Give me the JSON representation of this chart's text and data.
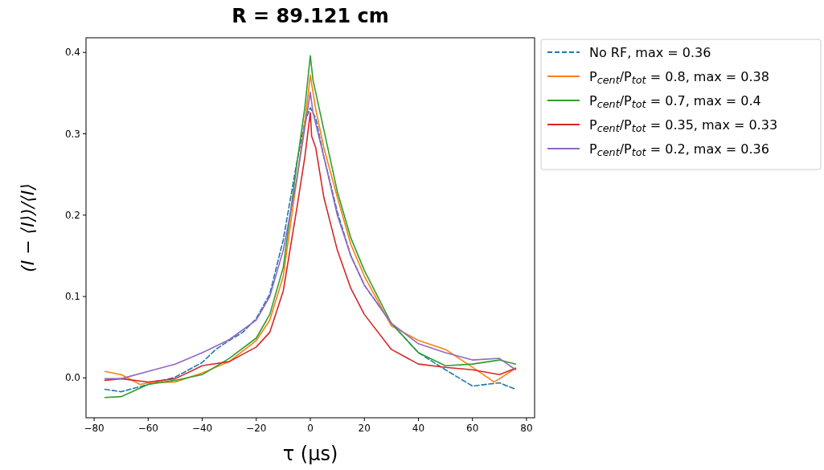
{
  "chart_data": {
    "type": "line",
    "title": "R = 89.121 cm",
    "xlabel": "τ (μs)",
    "ylabel": "(I − ⟨I⟩)/⟨I⟩",
    "xlim": [
      -83,
      83
    ],
    "ylim": [
      -0.049,
      0.418
    ],
    "xticks": [
      {
        "value": -80,
        "label": "−80"
      },
      {
        "value": -60,
        "label": "−60"
      },
      {
        "value": -40,
        "label": "−40"
      },
      {
        "value": -20,
        "label": "−20"
      },
      0,
      20,
      40,
      60,
      80
    ],
    "yticks": [
      {
        "value": 0,
        "label": "0.0"
      },
      {
        "value": 0.1,
        "label": "0.1"
      },
      {
        "value": 0.2,
        "label": "0.2"
      },
      {
        "value": 0.3,
        "label": "0.3"
      },
      {
        "value": 0.4,
        "label": "0.4"
      }
    ],
    "grid": false,
    "legend": "right",
    "series": [
      {
        "name": "No RF, max = 0.36",
        "color": "#1f77b4",
        "line_style": "dashed",
        "x": [
          -76,
          -70,
          -60,
          -50,
          -40,
          -35,
          -30,
          -25,
          -20,
          -15,
          -10,
          -5,
          -2,
          0,
          2,
          5,
          10,
          15,
          20,
          30,
          40,
          50,
          60,
          70,
          76
        ],
        "values": [
          -0.014,
          -0.017,
          -0.008,
          0.001,
          0.019,
          0.035,
          0.046,
          0.056,
          0.073,
          0.103,
          0.17,
          0.265,
          0.315,
          0.332,
          0.319,
          0.272,
          0.204,
          0.15,
          0.114,
          0.067,
          0.031,
          0.01,
          -0.01,
          -0.006,
          -0.014
        ]
      },
      {
        "name": "P$_{cent}$/P$_{tot}$ = 0.8, max = 0.38",
        "color": "#ff7f0e",
        "line_style": "solid",
        "x": [
          -76,
          -70,
          -63,
          -60,
          -50,
          -40,
          -30,
          -20,
          -15,
          -10,
          -5,
          -2,
          0,
          2,
          5,
          10,
          15,
          20,
          30,
          40,
          50,
          60,
          68,
          70,
          76
        ],
        "values": [
          0.008,
          0.004,
          -0.008,
          -0.006,
          -0.005,
          0.006,
          0.02,
          0.046,
          0.071,
          0.125,
          0.244,
          0.315,
          0.372,
          0.33,
          0.283,
          0.222,
          0.164,
          0.125,
          0.064,
          0.046,
          0.035,
          0.013,
          -0.005,
          -0.001,
          0.012
        ]
      },
      {
        "name": "P$_{cent}$/P$_{tot}$ = 0.7, max = 0.4",
        "color": "#2ca02c",
        "line_style": "solid",
        "x": [
          -76,
          -70,
          -60,
          -50,
          -40,
          -30,
          -20,
          -15,
          -10,
          -5,
          -2,
          0,
          1,
          5,
          10,
          15,
          20,
          30,
          40,
          50,
          60,
          70,
          76
        ],
        "values": [
          -0.024,
          -0.023,
          -0.008,
          -0.003,
          0.004,
          0.024,
          0.049,
          0.078,
          0.136,
          0.262,
          0.333,
          0.396,
          0.366,
          0.305,
          0.229,
          0.172,
          0.132,
          0.067,
          0.031,
          0.015,
          0.017,
          0.022,
          0.017
        ]
      },
      {
        "name": "P$_{cent}$/P$_{tot}$ = 0.35, max = 0.33",
        "color": "#d62728",
        "line_style": "solid",
        "x": [
          -76,
          -70,
          -60,
          -50,
          -40,
          -30,
          -20,
          -15,
          -10,
          -5,
          -2,
          0,
          0.5,
          2,
          5,
          10,
          15,
          20,
          30,
          40,
          50,
          60,
          70,
          76
        ],
        "values": [
          -0.003,
          -0.001,
          -0.005,
          -0.001,
          0.015,
          0.02,
          0.038,
          0.056,
          0.107,
          0.208,
          0.272,
          0.326,
          0.297,
          0.283,
          0.222,
          0.157,
          0.11,
          0.078,
          0.035,
          0.017,
          0.013,
          0.01,
          0.004,
          0.012
        ]
      },
      {
        "name": "P$_{cent}$/P$_{tot}$ = 0.2, max = 0.36",
        "color": "#9467bd",
        "line_style": "solid",
        "x": [
          -76,
          -70,
          -60,
          -50,
          -40,
          -30,
          -20,
          -15,
          -10,
          -5,
          -2,
          0,
          1,
          5,
          10,
          15,
          20,
          30,
          40,
          50,
          60,
          70,
          76
        ],
        "values": [
          -0.001,
          -0.001,
          0.008,
          0.017,
          0.031,
          0.047,
          0.071,
          0.1,
          0.157,
          0.244,
          0.308,
          0.351,
          0.326,
          0.272,
          0.2,
          0.15,
          0.114,
          0.067,
          0.042,
          0.031,
          0.022,
          0.024,
          0.01
        ]
      }
    ]
  }
}
